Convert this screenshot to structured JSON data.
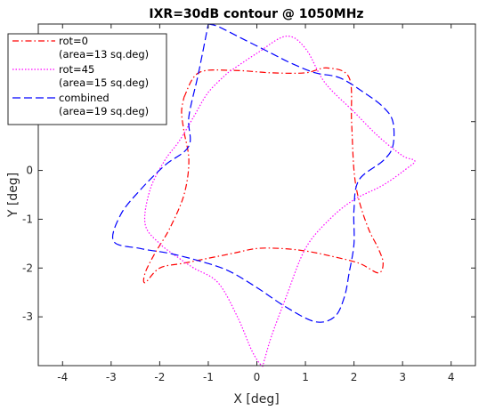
{
  "chart_data": {
    "type": "line",
    "title": "IXR=30dB contour @ 1050MHz",
    "xlabel": "X [deg]",
    "ylabel": "Y [deg]",
    "xlim": [
      -4.5,
      4.5
    ],
    "ylim": [
      -4.0,
      3.0
    ],
    "xticks": [
      -4,
      -3,
      -2,
      -1,
      0,
      1,
      2,
      3,
      4
    ],
    "yticks": [
      -3,
      -2,
      -1,
      0,
      1
    ],
    "grid": false,
    "legend_position": "top-left",
    "series": [
      {
        "legend_line1": "rot=0",
        "legend_line2": "(area=13 sq.deg)",
        "color": "#ff0000",
        "line_style": "dash-dot",
        "x": [
          -1.5,
          -1.2,
          -0.5,
          0.3,
          1.0,
          1.45,
          1.9,
          1.95,
          2.0,
          2.1,
          2.3,
          2.5,
          2.6,
          2.5,
          2.1,
          1.5,
          1.0,
          0.5,
          0.0,
          -0.5,
          -1.0,
          -1.5,
          -2.0,
          -2.3,
          -2.3,
          -2.1,
          -1.8,
          -1.5,
          -1.4,
          -1.5,
          -1.55,
          -1.5
        ],
        "y": [
          1.5,
          2.0,
          2.05,
          2.0,
          2.0,
          2.1,
          1.9,
          1.0,
          0.0,
          -0.6,
          -1.2,
          -1.6,
          -1.9,
          -2.1,
          -1.9,
          -1.75,
          -1.65,
          -1.6,
          -1.6,
          -1.7,
          -1.8,
          -1.9,
          -2.0,
          -2.3,
          -2.1,
          -1.7,
          -1.2,
          -0.5,
          0.2,
          0.8,
          1.2,
          1.5
        ]
      },
      {
        "legend_line1": "rot=45",
        "legend_line2": "(area=15 sq.deg)",
        "color": "#ff00ff",
        "line_style": "dotted",
        "x": [
          -0.6,
          0.0,
          0.6,
          1.0,
          1.4,
          2.0,
          2.5,
          3.0,
          3.25,
          3.1,
          2.6,
          2.0,
          1.5,
          1.0,
          0.6,
          0.3,
          0.15,
          0.1,
          -0.1,
          -0.4,
          -0.8,
          -1.3,
          -1.6,
          -2.0,
          -2.3,
          -2.2,
          -1.9,
          -1.6,
          -1.3,
          -1.0,
          -0.6
        ],
        "y": [
          2.0,
          2.4,
          2.75,
          2.5,
          1.8,
          1.2,
          0.7,
          0.3,
          0.2,
          0.05,
          -0.3,
          -0.6,
          -1.0,
          -1.6,
          -2.6,
          -3.4,
          -3.9,
          -4.0,
          -3.7,
          -3.0,
          -2.3,
          -2.0,
          -1.8,
          -1.5,
          -1.1,
          -0.4,
          0.2,
          0.6,
          1.1,
          1.6,
          2.0
        ]
      },
      {
        "legend_line1": "combined",
        "legend_line2": "(area=19 sq.deg)",
        "color": "#0000ff",
        "line_style": "dashed",
        "x": [
          -1.0,
          -0.8,
          -0.3,
          0.3,
          0.7,
          1.2,
          1.7,
          2.2,
          2.6,
          2.8,
          2.8,
          2.6,
          2.1,
          2.0,
          2.0,
          1.9,
          1.8,
          1.6,
          1.2,
          0.6,
          0.0,
          -0.6,
          -1.2,
          -1.8,
          -2.4,
          -2.95,
          -2.8,
          -2.4,
          -1.9,
          -1.4,
          -1.4,
          -1.2,
          -1.0
        ],
        "y": [
          3.0,
          2.95,
          2.7,
          2.4,
          2.2,
          2.0,
          1.9,
          1.6,
          1.3,
          1.0,
          0.5,
          0.2,
          -0.2,
          -0.8,
          -1.5,
          -2.1,
          -2.6,
          -3.0,
          -3.1,
          -2.8,
          -2.4,
          -2.05,
          -1.85,
          -1.7,
          -1.6,
          -1.45,
          -0.9,
          -0.4,
          0.1,
          0.5,
          1.1,
          2.0,
          3.0
        ]
      }
    ]
  }
}
